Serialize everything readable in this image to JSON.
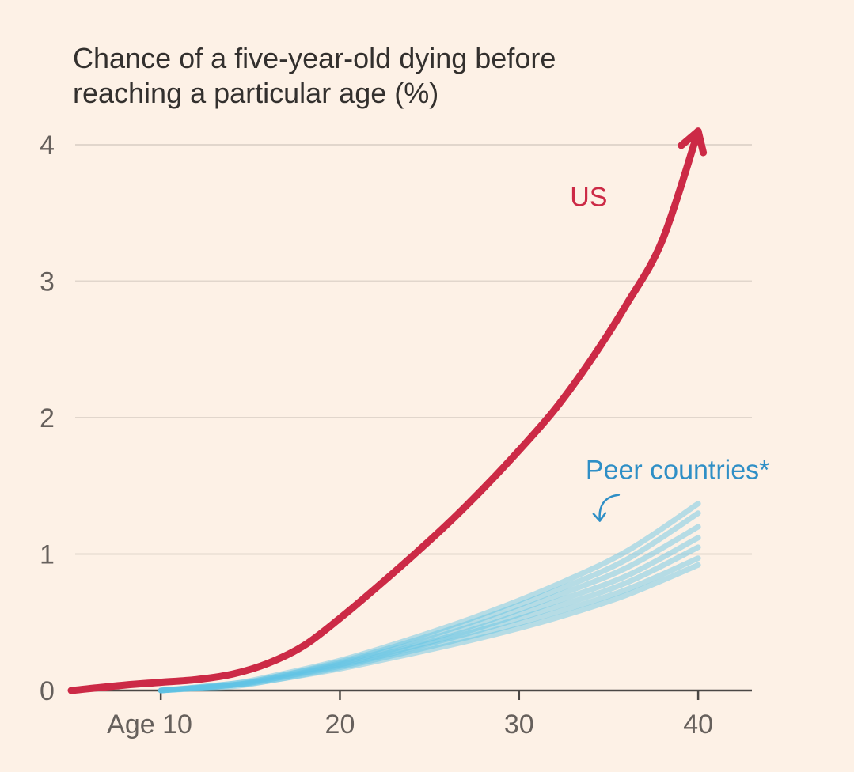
{
  "chart_data": {
    "type": "line",
    "title_lines": [
      "Chance of a five-year-old dying before",
      "reaching a particular age (%)"
    ],
    "xlabel": "",
    "ylabel": "",
    "xlim": [
      5,
      43
    ],
    "ylim": [
      0,
      4
    ],
    "x_ticks": [
      {
        "value": 10,
        "label": "Age 10"
      },
      {
        "value": 20,
        "label": "20"
      },
      {
        "value": 30,
        "label": "30"
      },
      {
        "value": 40,
        "label": "40"
      }
    ],
    "y_ticks": [
      {
        "value": 0,
        "label": "0"
      },
      {
        "value": 1,
        "label": "1"
      },
      {
        "value": 2,
        "label": "2"
      },
      {
        "value": 3,
        "label": "3"
      },
      {
        "value": 4,
        "label": "4"
      }
    ],
    "grid": true,
    "colors": {
      "us": "#cc2a46",
      "peer": "#5fc3e4",
      "grid": "#e1d6cc",
      "axis": "#4a4744",
      "annotation": "#2f8fc6"
    },
    "series": [
      {
        "name": "US",
        "group": "us",
        "x": [
          5,
          8,
          10,
          12,
          14,
          16,
          18,
          20,
          22,
          24,
          26,
          28,
          30,
          32,
          34,
          36,
          38,
          40
        ],
        "y": [
          0.0,
          0.04,
          0.06,
          0.08,
          0.12,
          0.2,
          0.33,
          0.53,
          0.75,
          0.98,
          1.22,
          1.48,
          1.76,
          2.06,
          2.42,
          2.83,
          3.3,
          4.1
        ]
      },
      {
        "name": "Peer 1",
        "group": "peer",
        "x": [
          10,
          14,
          16,
          20,
          24,
          28,
          32,
          36,
          40
        ],
        "y": [
          0.0,
          0.05,
          0.1,
          0.22,
          0.38,
          0.56,
          0.77,
          1.02,
          1.37
        ]
      },
      {
        "name": "Peer 2",
        "group": "peer",
        "x": [
          10,
          14,
          16,
          20,
          24,
          28,
          32,
          36,
          40
        ],
        "y": [
          0.0,
          0.05,
          0.09,
          0.21,
          0.36,
          0.53,
          0.73,
          0.96,
          1.3
        ]
      },
      {
        "name": "Peer 3",
        "group": "peer",
        "x": [
          10,
          14,
          16,
          20,
          24,
          28,
          32,
          36,
          40
        ],
        "y": [
          0.0,
          0.04,
          0.09,
          0.2,
          0.34,
          0.5,
          0.69,
          0.9,
          1.2
        ]
      },
      {
        "name": "Peer 4",
        "group": "peer",
        "x": [
          10,
          14,
          16,
          20,
          24,
          28,
          32,
          36,
          40
        ],
        "y": [
          0.0,
          0.04,
          0.08,
          0.19,
          0.32,
          0.47,
          0.65,
          0.84,
          1.12
        ]
      },
      {
        "name": "Peer 5",
        "group": "peer",
        "x": [
          10,
          14,
          16,
          20,
          24,
          28,
          32,
          36,
          40
        ],
        "y": [
          0.0,
          0.04,
          0.08,
          0.18,
          0.31,
          0.45,
          0.61,
          0.79,
          1.05
        ]
      },
      {
        "name": "Peer 6",
        "group": "peer",
        "x": [
          10,
          14,
          16,
          20,
          24,
          28,
          32,
          36,
          40
        ],
        "y": [
          0.0,
          0.04,
          0.07,
          0.17,
          0.29,
          0.42,
          0.57,
          0.74,
          0.97
        ]
      },
      {
        "name": "Peer 7",
        "group": "peer",
        "x": [
          10,
          14,
          16,
          20,
          24,
          28,
          32,
          36,
          40
        ],
        "y": [
          0.0,
          0.03,
          0.07,
          0.16,
          0.27,
          0.39,
          0.53,
          0.7,
          0.92
        ]
      }
    ],
    "annotations": [
      {
        "name": "us-label",
        "text": "US",
        "x": 35.5,
        "y": 3.55,
        "color_key": "us"
      },
      {
        "name": "peer-label",
        "text": "Peer countries*",
        "x": 34.6,
        "y": 1.55,
        "color_key": "annotation"
      }
    ]
  }
}
